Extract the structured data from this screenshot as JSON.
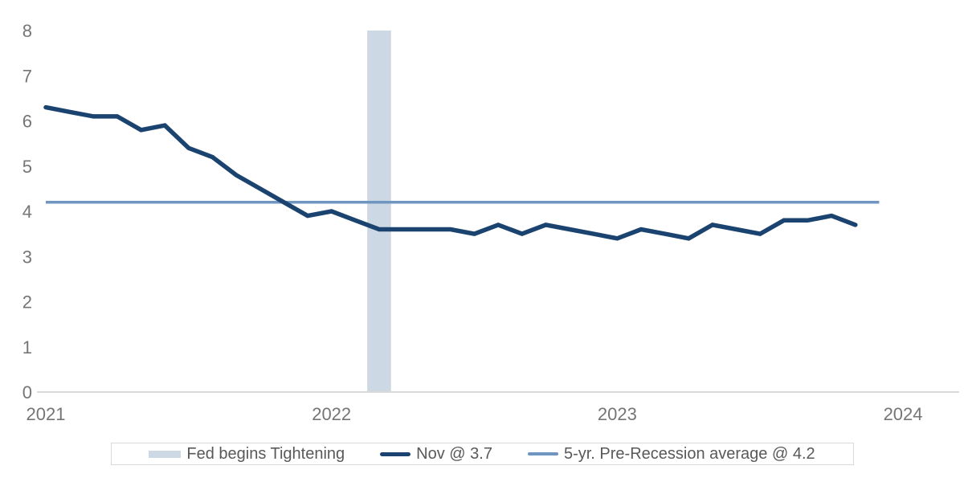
{
  "chart_data": {
    "type": "line",
    "title": "",
    "xlabel": "",
    "ylabel": "",
    "ylim": [
      0,
      8
    ],
    "yticks": [
      0,
      1,
      2,
      3,
      4,
      5,
      6,
      7,
      8
    ],
    "xticks": [
      {
        "label": "2021",
        "month_index": 0
      },
      {
        "label": "2022",
        "month_index": 12
      },
      {
        "label": "2023",
        "month_index": 24
      },
      {
        "label": "2024",
        "month_index": 36
      }
    ],
    "grid": false,
    "legend_position": "bottom",
    "x_months": [
      "Jan-21",
      "Feb-21",
      "Mar-21",
      "Apr-21",
      "May-21",
      "Jun-21",
      "Jul-21",
      "Aug-21",
      "Sep-21",
      "Oct-21",
      "Nov-21",
      "Dec-21",
      "Jan-22",
      "Feb-22",
      "Mar-22",
      "Apr-22",
      "May-22",
      "Jun-22",
      "Jul-22",
      "Aug-22",
      "Sep-22",
      "Oct-22",
      "Nov-22",
      "Dec-22",
      "Jan-23",
      "Feb-23",
      "Mar-23",
      "Apr-23",
      "May-23",
      "Jun-23",
      "Jul-23",
      "Aug-23",
      "Sep-23",
      "Oct-23",
      "Nov-23"
    ],
    "series": [
      {
        "name": "Fed begins Tightening",
        "type": "vband",
        "color": "#ccd9e5",
        "month": "Mar-22",
        "month_index": 14,
        "band_width_months": 1
      },
      {
        "name": "Nov @ 3.7",
        "type": "line",
        "color": "#1b4370",
        "stroke_width": 5.5,
        "values": [
          6.3,
          6.2,
          6.1,
          6.1,
          5.8,
          5.9,
          5.4,
          5.2,
          4.8,
          4.5,
          4.2,
          3.9,
          4.0,
          3.8,
          3.6,
          3.6,
          3.6,
          3.6,
          3.5,
          3.7,
          3.5,
          3.7,
          3.6,
          3.5,
          3.4,
          3.6,
          3.5,
          3.4,
          3.7,
          3.6,
          3.5,
          3.8,
          3.8,
          3.9,
          3.7
        ]
      },
      {
        "name": "5-yr. Pre-Recession average @ 4.2",
        "type": "hline",
        "color": "#7095c0",
        "stroke_width": 3.5,
        "value": 4.2,
        "start_month_index": 0,
        "end_month_index": 35
      }
    ],
    "axis_line_color": "#d9d9d9",
    "tick_text_color": "#757575"
  },
  "legend": {
    "text_color": "#595959",
    "border_color": "#d9d9d9",
    "items": [
      {
        "label": "Fed begins Tightening",
        "swatch": "vband"
      },
      {
        "label": "Nov @ 3.7",
        "swatch": "line"
      },
      {
        "label": "5-yr. Pre-Recession average @ 4.2",
        "swatch": "hline"
      }
    ]
  }
}
